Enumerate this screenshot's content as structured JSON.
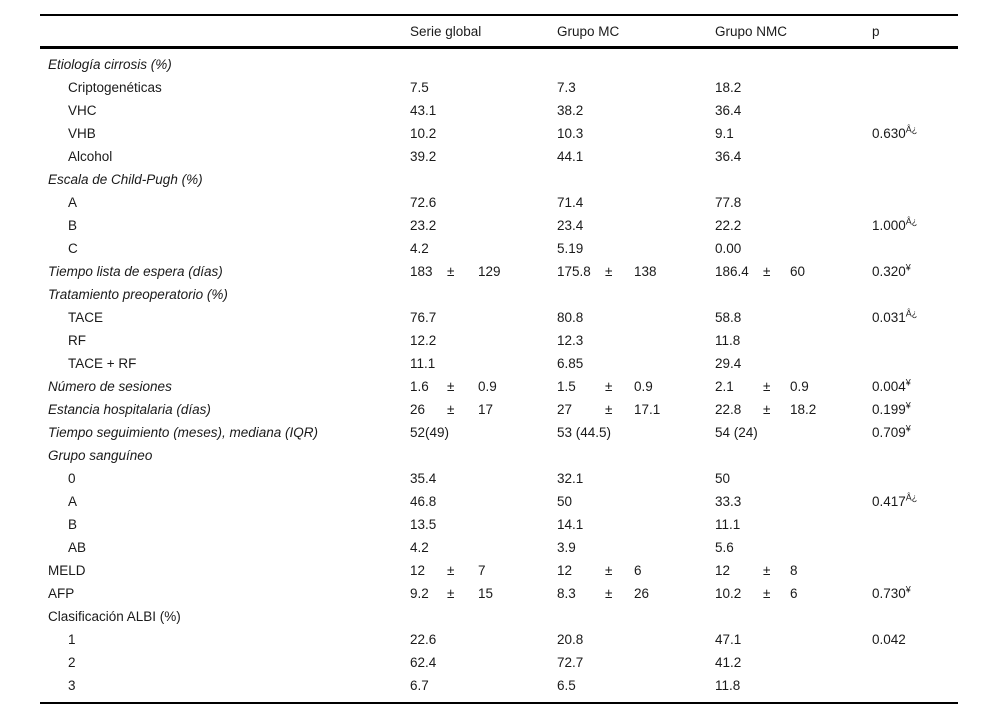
{
  "table": {
    "plus_minus": "±",
    "columns": [
      "",
      "Serie global",
      "Grupo MC",
      "Grupo NMC",
      "p"
    ],
    "rows": [
      {
        "label": "Etiología cirrosis (%)",
        "italic": true
      },
      {
        "label": "Criptogenéticas",
        "indent": true,
        "sg": "7.5",
        "mc": "7.3",
        "nmc": "18.2"
      },
      {
        "label": "VHC",
        "indent": true,
        "sg": "43.1",
        "mc": "38.2",
        "nmc": "36.4"
      },
      {
        "label": "VHB",
        "indent": true,
        "sg": "10.2",
        "mc": "10.3",
        "nmc": "9.1",
        "p": "0.630",
        "p_sup": "Â¿"
      },
      {
        "label": "Alcohol",
        "indent": true,
        "sg": "39.2",
        "mc": "44.1",
        "nmc": "36.4"
      },
      {
        "label": "Escala de Child-Pugh (%)",
        "italic": true
      },
      {
        "label": "A",
        "indent": true,
        "sg": "72.6",
        "mc": "71.4",
        "nmc": "77.8"
      },
      {
        "label": "B",
        "indent": true,
        "sg": "23.2",
        "mc": "23.4",
        "nmc": "22.2",
        "p": "1.000",
        "p_sup": "Â¿"
      },
      {
        "label": "C",
        "indent": true,
        "sg": "4.2",
        "mc": "5.19",
        "nmc": "0.00"
      },
      {
        "label": "Tiempo lista de espera (días)",
        "italic": true,
        "sg": [
          "183",
          "129"
        ],
        "mc": [
          "175.8",
          "138"
        ],
        "nmc": [
          "186.4",
          "60"
        ],
        "p": "0.320",
        "p_sup": "¥"
      },
      {
        "label": "Tratamiento preoperatorio (%)",
        "italic": true
      },
      {
        "label": "TACE",
        "indent": true,
        "sg": "76.7",
        "mc": "80.8",
        "nmc": "58.8",
        "p": "0.031",
        "p_sup": "Â¿"
      },
      {
        "label": "RF",
        "indent": true,
        "sg": "12.2",
        "mc": "12.3",
        "nmc": "11.8"
      },
      {
        "label": "TACE + RF",
        "indent": true,
        "sg": "11.1",
        "mc": "6.85",
        "nmc": "29.4"
      },
      {
        "label": "Número de sesiones",
        "italic": true,
        "sg": [
          "1.6",
          "0.9"
        ],
        "mc": [
          "1.5",
          "0.9"
        ],
        "nmc": [
          "2.1",
          "0.9"
        ],
        "p": "0.004",
        "p_sup": "¥"
      },
      {
        "label": "Estancia hospitalaria (días)",
        "italic": true,
        "sg": [
          "26",
          "17"
        ],
        "mc": [
          "27",
          "17.1"
        ],
        "nmc": [
          "22.8",
          "18.2"
        ],
        "p": "0.199",
        "p_sup": "¥"
      },
      {
        "label": "Tiempo seguimiento (meses), mediana (IQR)",
        "italic": true,
        "sg": "52(49)",
        "mc": "53 (44.5)",
        "nmc": "54 (24)",
        "p": "0.709",
        "p_sup": "¥"
      },
      {
        "label": "Grupo sanguíneo",
        "italic": true
      },
      {
        "label": "0",
        "indent": true,
        "sg": "35.4",
        "mc": "32.1",
        "nmc": "50"
      },
      {
        "label": "A",
        "indent": true,
        "sg": "46.8",
        "mc": "50",
        "nmc": "33.3",
        "p": "0.417",
        "p_sup": "Â¿"
      },
      {
        "label": "B",
        "indent": true,
        "sg": "13.5",
        "mc": "14.1",
        "nmc": "11.1"
      },
      {
        "label": "AB",
        "indent": true,
        "sg": "4.2",
        "mc": "3.9",
        "nmc": "5.6"
      },
      {
        "label": "MELD",
        "sg": [
          "12",
          "7"
        ],
        "mc": [
          "12",
          "6"
        ],
        "nmc": [
          "12",
          "8"
        ]
      },
      {
        "label": "AFP",
        "sg": [
          "9.2",
          "15"
        ],
        "mc": [
          "8.3",
          "26"
        ],
        "nmc": [
          "10.2",
          "6"
        ],
        "p": "0.730",
        "p_sup": "¥"
      },
      {
        "label": "Clasificación ALBI (%)"
      },
      {
        "label": "1",
        "indent": true,
        "sg": "22.6",
        "mc": "20.8",
        "nmc": "47.1",
        "p": "0.042",
        "p_sup": ""
      },
      {
        "label": "2",
        "indent": true,
        "sg": "62.4",
        "mc": "72.7",
        "nmc": "41.2"
      },
      {
        "label": "3",
        "indent": true,
        "sg": "6.7",
        "mc": "6.5",
        "nmc": "11.8"
      }
    ]
  }
}
